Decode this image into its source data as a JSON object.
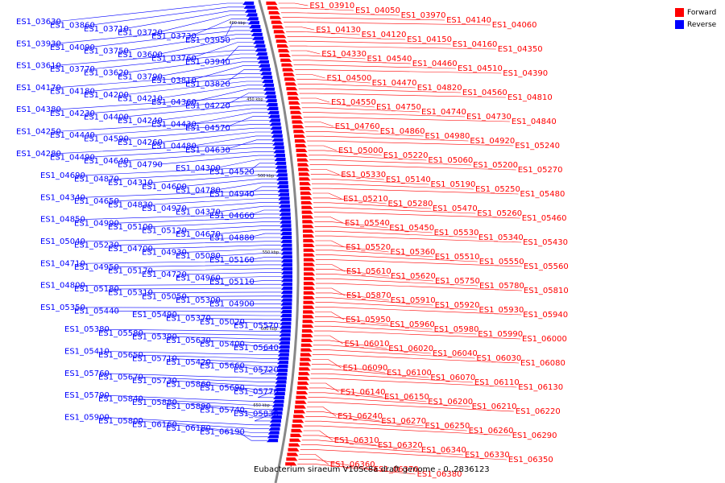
{
  "legend": {
    "items": [
      {
        "label": "Forward",
        "color": "#ff0000"
      },
      {
        "label": "Reverse",
        "color": "#0000ff"
      }
    ]
  },
  "caption": "Eubacterium siraeum V10Sc8a draft genome - 0..2836123",
  "ticks": [
    "400 kbp",
    "450 kbp",
    "500 kbp",
    "550 kbp",
    "600 kbp",
    "650 kbp"
  ],
  "left_genes": [
    "ES1_03630",
    "ES1_03860",
    "ES1_03710",
    "ES1_03720",
    "ES1_03730",
    "ES1_03950",
    "ES1_03930",
    "ES1_04090",
    "ES1_03750",
    "ES1_03600",
    "ES1_03760",
    "ES1_03940",
    "ES1_03610",
    "ES1_03770",
    "ES1_03620",
    "ES1_03790",
    "ES1_03810",
    "ES1_03820",
    "ES1_04170",
    "ES1_04180",
    "ES1_04200",
    "ES1_04210",
    "ES1_04360",
    "ES1_04220",
    "ES1_04380",
    "ES1_04230",
    "ES1_04400",
    "ES1_04240",
    "ES1_04430",
    "ES1_04570",
    "ES1_04250",
    "ES1_04440",
    "ES1_04590",
    "ES1_04260",
    "ES1_04480",
    "ES1_04630",
    "ES1_04280",
    "ES1_04490",
    "ES1_04640",
    "ES1_04790",
    "ES1_04300",
    "ES1_04520",
    "ES1_04690",
    "ES1_04870",
    "ES1_04310",
    "ES1_04600",
    "ES1_04780",
    "ES1_04940",
    "ES1_04340",
    "ES1_04650",
    "ES1_04830",
    "ES1_04970",
    "ES1_04370",
    "ES1_04660",
    "ES1_04850",
    "ES1_04990",
    "ES1_05100",
    "ES1_05120",
    "ES1_04670",
    "ES1_04880",
    "ES1_05040",
    "ES1_05230",
    "ES1_04700",
    "ES1_04930",
    "ES1_05080",
    "ES1_05160",
    "ES1_04710",
    "ES1_04950",
    "ES1_05170",
    "ES1_04720",
    "ES1_04960",
    "ES1_05110",
    "ES1_04800",
    "ES1_05180",
    "ES1_05310",
    "ES1_05050",
    "ES1_05300",
    "ES1_04900",
    "ES1_05350",
    "ES1_05440",
    "ES1_05490",
    "ES1_05370",
    "ES1_05020",
    "ES1_05570",
    "ES1_05380",
    "ES1_05580",
    "ES1_05390",
    "ES1_05630",
    "ES1_05400",
    "ES1_05640",
    "ES1_05410",
    "ES1_05650",
    "ES1_05710",
    "ES1_05420",
    "ES1_05660",
    "ES1_05720",
    "ES1_05760",
    "ES1_05670",
    "ES1_05730",
    "ES1_05860",
    "ES1_05690",
    "ES1_05770",
    "ES1_05790",
    "ES1_05840",
    "ES1_05880",
    "ES1_05890",
    "ES1_05740",
    "ES1_05830",
    "ES1_05900",
    "ES1_05800",
    "ES1_06160",
    "ES1_06180",
    "ES1_06190"
  ],
  "right_genes": [
    "ES1_03910",
    "ES1_04050",
    "ES1_03970",
    "ES1_04140",
    "ES1_04060",
    "ES1_04130",
    "ES1_04120",
    "ES1_04150",
    "ES1_04160",
    "ES1_04350",
    "ES1_04330",
    "ES1_04540",
    "ES1_04460",
    "ES1_04510",
    "ES1_04390",
    "ES1_04500",
    "ES1_04470",
    "ES1_04820",
    "ES1_04560",
    "ES1_04810",
    "ES1_04550",
    "ES1_04750",
    "ES1_04740",
    "ES1_04730",
    "ES1_04840",
    "ES1_04760",
    "ES1_04860",
    "ES1_04980",
    "ES1_04920",
    "ES1_05240",
    "ES1_05000",
    "ES1_05220",
    "ES1_05060",
    "ES1_05200",
    "ES1_05270",
    "ES1_05330",
    "ES1_05140",
    "ES1_05190",
    "ES1_05250",
    "ES1_05480",
    "ES1_05210",
    "ES1_05280",
    "ES1_05470",
    "ES1_05260",
    "ES1_05460",
    "ES1_05540",
    "ES1_05450",
    "ES1_05530",
    "ES1_05340",
    "ES1_05430",
    "ES1_05520",
    "ES1_05360",
    "ES1_05510",
    "ES1_05550",
    "ES1_05560",
    "ES1_05610",
    "ES1_05620",
    "ES1_05750",
    "ES1_05780",
    "ES1_05810",
    "ES1_05870",
    "ES1_05910",
    "ES1_05920",
    "ES1_05930",
    "ES1_05940",
    "ES1_05950",
    "ES1_05960",
    "ES1_05980",
    "ES1_05990",
    "ES1_06000",
    "ES1_06010",
    "ES1_06020",
    "ES1_06040",
    "ES1_06030",
    "ES1_06080",
    "ES1_06090",
    "ES1_06100",
    "ES1_06070",
    "ES1_06110",
    "ES1_06130",
    "ES1_06140",
    "ES1_06150",
    "ES1_06200",
    "ES1_06210",
    "ES1_06220",
    "ES1_06240",
    "ES1_06270",
    "ES1_06250",
    "ES1_06260",
    "ES1_06290",
    "ES1_06310",
    "ES1_06320",
    "ES1_06340",
    "ES1_06330",
    "ES1_06350",
    "ES1_06360",
    "ES1_06370",
    "ES1_06380"
  ]
}
